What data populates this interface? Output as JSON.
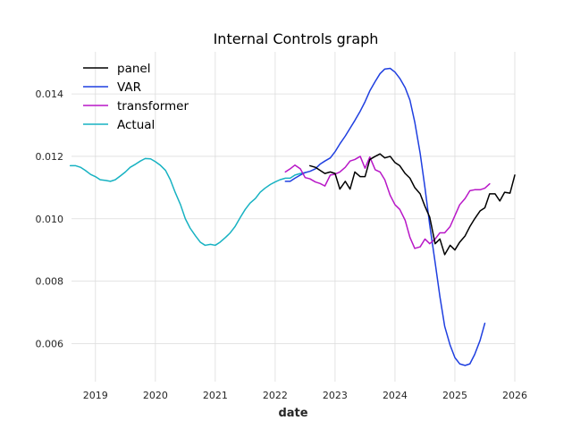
{
  "chart_data": {
    "type": "line",
    "title": "Internal Controls graph",
    "xlabel": "date",
    "ylabel": "",
    "xlim": [
      2018.6,
      2026.0
    ],
    "ylim": [
      0.00478,
      0.01535
    ],
    "x_ticks": [
      2019,
      2020,
      2021,
      2022,
      2023,
      2024,
      2025,
      2026
    ],
    "x_tick_labels": [
      "2019",
      "2020",
      "2021",
      "2022",
      "2023",
      "2024",
      "2025",
      "2026"
    ],
    "y_ticks": [
      0.006,
      0.008,
      0.01,
      0.012,
      0.014
    ],
    "y_tick_labels": [
      "0.006",
      "0.008",
      "0.010",
      "0.012",
      "0.014"
    ],
    "grid": true,
    "legend_position": "top-left",
    "series": [
      {
        "name": "panel",
        "color": "#000000",
        "points": [
          [
            2022.58,
            0.0117
          ],
          [
            2022.67,
            0.01165
          ],
          [
            2022.75,
            0.01155
          ],
          [
            2022.83,
            0.01145
          ],
          [
            2022.92,
            0.0115
          ],
          [
            2023.0,
            0.01145
          ],
          [
            2023.08,
            0.01095
          ],
          [
            2023.17,
            0.0112
          ],
          [
            2023.25,
            0.01095
          ],
          [
            2023.33,
            0.0115
          ],
          [
            2023.42,
            0.01135
          ],
          [
            2023.5,
            0.01135
          ],
          [
            2023.58,
            0.0119
          ],
          [
            2023.67,
            0.012
          ],
          [
            2023.75,
            0.01208
          ],
          [
            2023.83,
            0.01195
          ],
          [
            2023.92,
            0.012
          ],
          [
            2024.0,
            0.0118
          ],
          [
            2024.08,
            0.0117
          ],
          [
            2024.17,
            0.01145
          ],
          [
            2024.25,
            0.0113
          ],
          [
            2024.33,
            0.011
          ],
          [
            2024.42,
            0.0108
          ],
          [
            2024.5,
            0.0104
          ],
          [
            2024.58,
            0.01005
          ],
          [
            2024.67,
            0.0092
          ],
          [
            2024.75,
            0.00935
          ],
          [
            2024.83,
            0.00885
          ],
          [
            2024.92,
            0.00915
          ],
          [
            2025.0,
            0.009
          ],
          [
            2025.08,
            0.00925
          ],
          [
            2025.17,
            0.00945
          ],
          [
            2025.25,
            0.00975
          ],
          [
            2025.33,
            0.01
          ],
          [
            2025.42,
            0.01025
          ],
          [
            2025.5,
            0.01035
          ],
          [
            2025.58,
            0.0108
          ],
          [
            2025.67,
            0.0108
          ],
          [
            2025.75,
            0.01057
          ],
          [
            2025.83,
            0.01085
          ],
          [
            2025.92,
            0.01082
          ],
          [
            2026.0,
            0.0114
          ]
        ]
      },
      {
        "name": "VAR",
        "color": "#1f3fe0",
        "points": [
          [
            2022.17,
            0.0112
          ],
          [
            2022.25,
            0.0112
          ],
          [
            2022.33,
            0.0113
          ],
          [
            2022.42,
            0.0114
          ],
          [
            2022.5,
            0.01148
          ],
          [
            2022.58,
            0.01152
          ],
          [
            2022.67,
            0.0116
          ],
          [
            2022.75,
            0.01175
          ],
          [
            2022.83,
            0.01185
          ],
          [
            2022.92,
            0.01195
          ],
          [
            2023.0,
            0.01215
          ],
          [
            2023.08,
            0.0124
          ],
          [
            2023.17,
            0.01265
          ],
          [
            2023.25,
            0.0129
          ],
          [
            2023.33,
            0.01315
          ],
          [
            2023.42,
            0.01345
          ],
          [
            2023.5,
            0.01375
          ],
          [
            2023.58,
            0.0141
          ],
          [
            2023.67,
            0.0144
          ],
          [
            2023.75,
            0.01465
          ],
          [
            2023.83,
            0.0148
          ],
          [
            2023.92,
            0.01482
          ],
          [
            2024.0,
            0.0147
          ],
          [
            2024.08,
            0.0145
          ],
          [
            2024.17,
            0.0142
          ],
          [
            2024.25,
            0.0138
          ],
          [
            2024.33,
            0.0131
          ],
          [
            2024.42,
            0.0121
          ],
          [
            2024.5,
            0.011
          ],
          [
            2024.58,
            0.0098
          ],
          [
            2024.67,
            0.0086
          ],
          [
            2024.75,
            0.0075
          ],
          [
            2024.83,
            0.00655
          ],
          [
            2024.92,
            0.00595
          ],
          [
            2025.0,
            0.00555
          ],
          [
            2025.08,
            0.00535
          ],
          [
            2025.17,
            0.0053
          ],
          [
            2025.25,
            0.00535
          ],
          [
            2025.33,
            0.00565
          ],
          [
            2025.42,
            0.0061
          ],
          [
            2025.5,
            0.00665
          ]
        ]
      },
      {
        "name": "transformer",
        "color": "#b817c7",
        "points": [
          [
            2022.17,
            0.0115
          ],
          [
            2022.25,
            0.0116
          ],
          [
            2022.33,
            0.01172
          ],
          [
            2022.42,
            0.0116
          ],
          [
            2022.5,
            0.01132
          ],
          [
            2022.58,
            0.01128
          ],
          [
            2022.67,
            0.01118
          ],
          [
            2022.75,
            0.01113
          ],
          [
            2022.83,
            0.01105
          ],
          [
            2022.92,
            0.0114
          ],
          [
            2023.0,
            0.01143
          ],
          [
            2023.08,
            0.0115
          ],
          [
            2023.17,
            0.01165
          ],
          [
            2023.25,
            0.01185
          ],
          [
            2023.33,
            0.0119
          ],
          [
            2023.42,
            0.012
          ],
          [
            2023.5,
            0.01162
          ],
          [
            2023.58,
            0.01198
          ],
          [
            2023.67,
            0.01157
          ],
          [
            2023.75,
            0.0115
          ],
          [
            2023.83,
            0.01125
          ],
          [
            2023.92,
            0.01075
          ],
          [
            2024.0,
            0.01045
          ],
          [
            2024.08,
            0.0103
          ],
          [
            2024.17,
            0.00995
          ],
          [
            2024.25,
            0.0094
          ],
          [
            2024.33,
            0.00905
          ],
          [
            2024.42,
            0.0091
          ],
          [
            2024.5,
            0.00935
          ],
          [
            2024.58,
            0.0092
          ],
          [
            2024.67,
            0.00935
          ],
          [
            2024.75,
            0.00955
          ],
          [
            2024.83,
            0.00955
          ],
          [
            2024.92,
            0.00975
          ],
          [
            2025.0,
            0.0101
          ],
          [
            2025.08,
            0.01045
          ],
          [
            2025.17,
            0.01065
          ],
          [
            2025.25,
            0.0109
          ],
          [
            2025.33,
            0.01093
          ],
          [
            2025.42,
            0.01093
          ],
          [
            2025.5,
            0.01098
          ],
          [
            2025.58,
            0.01112
          ]
        ]
      },
      {
        "name": "Actual",
        "color": "#17b2c2",
        "points": [
          [
            2018.58,
            0.0117
          ],
          [
            2018.67,
            0.0117
          ],
          [
            2018.75,
            0.01165
          ],
          [
            2018.83,
            0.01155
          ],
          [
            2018.92,
            0.01142
          ],
          [
            2019.0,
            0.01135
          ],
          [
            2019.08,
            0.01125
          ],
          [
            2019.17,
            0.01123
          ],
          [
            2019.25,
            0.0112
          ],
          [
            2019.33,
            0.01125
          ],
          [
            2019.42,
            0.01138
          ],
          [
            2019.5,
            0.0115
          ],
          [
            2019.58,
            0.01165
          ],
          [
            2019.67,
            0.01175
          ],
          [
            2019.75,
            0.01185
          ],
          [
            2019.83,
            0.01193
          ],
          [
            2019.92,
            0.01192
          ],
          [
            2020.0,
            0.01183
          ],
          [
            2020.08,
            0.01172
          ],
          [
            2020.17,
            0.01155
          ],
          [
            2020.25,
            0.01125
          ],
          [
            2020.33,
            0.01085
          ],
          [
            2020.42,
            0.01045
          ],
          [
            2020.5,
            0.01
          ],
          [
            2020.58,
            0.0097
          ],
          [
            2020.67,
            0.00945
          ],
          [
            2020.75,
            0.00925
          ],
          [
            2020.83,
            0.00915
          ],
          [
            2020.92,
            0.00918
          ],
          [
            2021.0,
            0.00915
          ],
          [
            2021.08,
            0.00925
          ],
          [
            2021.17,
            0.0094
          ],
          [
            2021.25,
            0.00955
          ],
          [
            2021.33,
            0.00975
          ],
          [
            2021.42,
            0.01005
          ],
          [
            2021.5,
            0.0103
          ],
          [
            2021.58,
            0.0105
          ],
          [
            2021.67,
            0.01065
          ],
          [
            2021.75,
            0.01085
          ],
          [
            2021.83,
            0.01098
          ],
          [
            2021.92,
            0.0111
          ],
          [
            2022.0,
            0.01118
          ],
          [
            2022.08,
            0.01125
          ],
          [
            2022.17,
            0.0113
          ],
          [
            2022.25,
            0.0113
          ],
          [
            2022.33,
            0.0114
          ],
          [
            2022.42,
            0.01145
          ],
          [
            2022.5,
            0.01148
          ]
        ]
      }
    ]
  }
}
